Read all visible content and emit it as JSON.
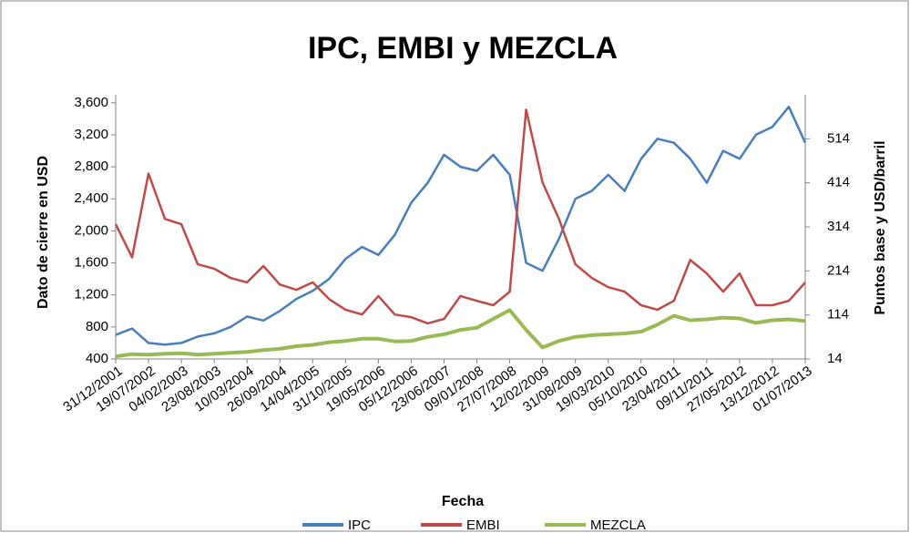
{
  "chart_data": {
    "type": "line",
    "title": "IPC, EMBI y MEZCLA",
    "x_label": "Fecha",
    "y_label": "Dato de cierre en USD",
    "y2_label": "Puntos base y USD/barril",
    "categories": [
      "31/12/2001",
      null,
      "19/07/2002",
      null,
      "04/02/2003",
      null,
      "23/08/2003",
      null,
      "10/03/2004",
      null,
      "26/09/2004",
      null,
      "14/04/2005",
      null,
      "31/10/2005",
      null,
      "19/05/2006",
      null,
      "05/12/2006",
      null,
      "23/06/2007",
      null,
      "09/01/2008",
      null,
      "27/07/2008",
      null,
      "12/02/2009",
      null,
      "31/08/2009",
      null,
      "19/03/2010",
      null,
      "05/10/2010",
      null,
      "23/04/2011",
      null,
      "09/11/2011",
      null,
      "27/05/2012",
      null,
      "13/12/2012",
      null,
      "01/07/2013"
    ],
    "series": [
      {
        "name": "IPC",
        "color": "#4a7ebb",
        "values": [
          700,
          780,
          600,
          580,
          600,
          680,
          720,
          800,
          930,
          880,
          1000,
          1150,
          1250,
          1400,
          1650,
          1800,
          1700,
          1950,
          2350,
          2600,
          2950,
          2800,
          2750,
          2950,
          2700,
          1600,
          1500,
          1900,
          2400,
          2500,
          2700,
          2500,
          2900,
          3150,
          3100,
          2900,
          2600,
          3000,
          2900,
          3200,
          3300,
          3550,
          3100
        ]
      },
      {
        "name": "EMBI",
        "color": "#be4b48",
        "axis": "y2",
        "values": [
          320,
          245,
          435,
          332,
          320,
          229,
          219,
          198,
          188,
          225,
          183,
          171,
          188,
          150,
          126,
          115,
          157,
          115,
          109,
          95,
          105,
          157,
          146,
          136,
          167,
          580,
          415,
          332,
          229,
          198,
          177,
          167,
          136,
          126,
          146,
          239,
          208,
          167,
          208,
          136,
          136,
          146,
          188
        ]
      },
      {
        "name": "MEZCLA",
        "color": "#98b954",
        "axis": "y2",
        "values": [
          20,
          25,
          24,
          26,
          27,
          24,
          26,
          28,
          30,
          34,
          37,
          43,
          46,
          52,
          55,
          60,
          60,
          54,
          55,
          64,
          70,
          80,
          85,
          105,
          125,
          80,
          40,
          55,
          64,
          68,
          70,
          72,
          76,
          92,
          112,
          102,
          104,
          108,
          106,
          96,
          102,
          104,
          100
        ]
      }
    ],
    "ylim": [
      400,
      3700
    ],
    "yticks": [
      {
        "value": 400,
        "label": "400"
      },
      {
        "value": 800,
        "label": "800"
      },
      {
        "value": 1200,
        "label": "1,200"
      },
      {
        "value": 1600,
        "label": "1,600"
      },
      {
        "value": 2000,
        "label": "2,000"
      },
      {
        "value": 2400,
        "label": "2,400"
      },
      {
        "value": 2800,
        "label": "2,800"
      },
      {
        "value": 3200,
        "label": "3,200"
      },
      {
        "value": 3600,
        "label": "3,600"
      }
    ],
    "y2lim": [
      14,
      614
    ],
    "y2ticks": [
      14,
      114,
      214,
      314,
      414,
      514
    ],
    "legend": "bottom"
  }
}
